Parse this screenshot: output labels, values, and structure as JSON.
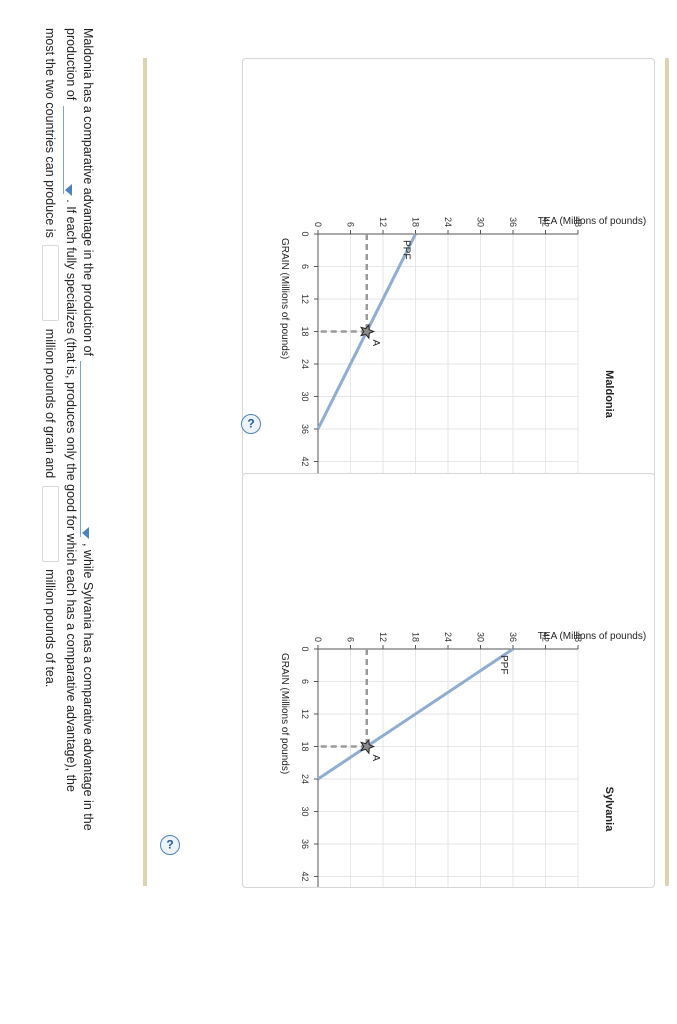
{
  "help_label": "?",
  "charts": [
    {
      "name": "maldonia",
      "title": "Maldonia",
      "chart_data": {
        "type": "line",
        "title": "Maldonia",
        "xlabel": "GRAIN (Millions of pounds)",
        "ylabel": "TEA (Millions of pounds)",
        "xlim": [
          0,
          48
        ],
        "ylim": [
          0,
          48
        ],
        "xticks": [
          0,
          6,
          12,
          18,
          24,
          30,
          36,
          42,
          48
        ],
        "yticks": [
          0,
          6,
          12,
          18,
          24,
          30,
          36,
          42,
          48
        ],
        "ppf_label": "PPF",
        "series": [
          {
            "name": "PPF",
            "x": [
              0,
              36
            ],
            "y": [
              18,
              0
            ]
          }
        ],
        "point": {
          "label": "A",
          "x": 18,
          "y": 9
        }
      }
    },
    {
      "name": "sylvania",
      "title": "Sylvania",
      "chart_data": {
        "type": "line",
        "title": "Sylvania",
        "xlabel": "GRAIN (Millions of pounds)",
        "ylabel": "TEA (Millions of pounds)",
        "xlim": [
          0,
          48
        ],
        "ylim": [
          0,
          48
        ],
        "xticks": [
          0,
          6,
          12,
          18,
          24,
          30,
          36,
          42,
          48
        ],
        "yticks": [
          0,
          6,
          12,
          18,
          24,
          30,
          36,
          42,
          48
        ],
        "ppf_label": "PPF",
        "series": [
          {
            "name": "PPF",
            "x": [
              0,
              24
            ],
            "y": [
              36,
              0
            ]
          }
        ],
        "point": {
          "label": "A",
          "x": 18,
          "y": 9
        }
      }
    }
  ],
  "question": {
    "l1_a": "Maldonia has a comparative advantage in the production of",
    "l1_b": ", while Sylvania has a comparative advantage in the",
    "l2_a": "production of",
    "l2_b": ". If each fully specializes (that is, produces only the good for which each has a comparative advantage), the",
    "l3_a": "most the two countries can produce is",
    "l3_b": "million pounds of grain and",
    "l3_c": "million pounds of tea."
  }
}
